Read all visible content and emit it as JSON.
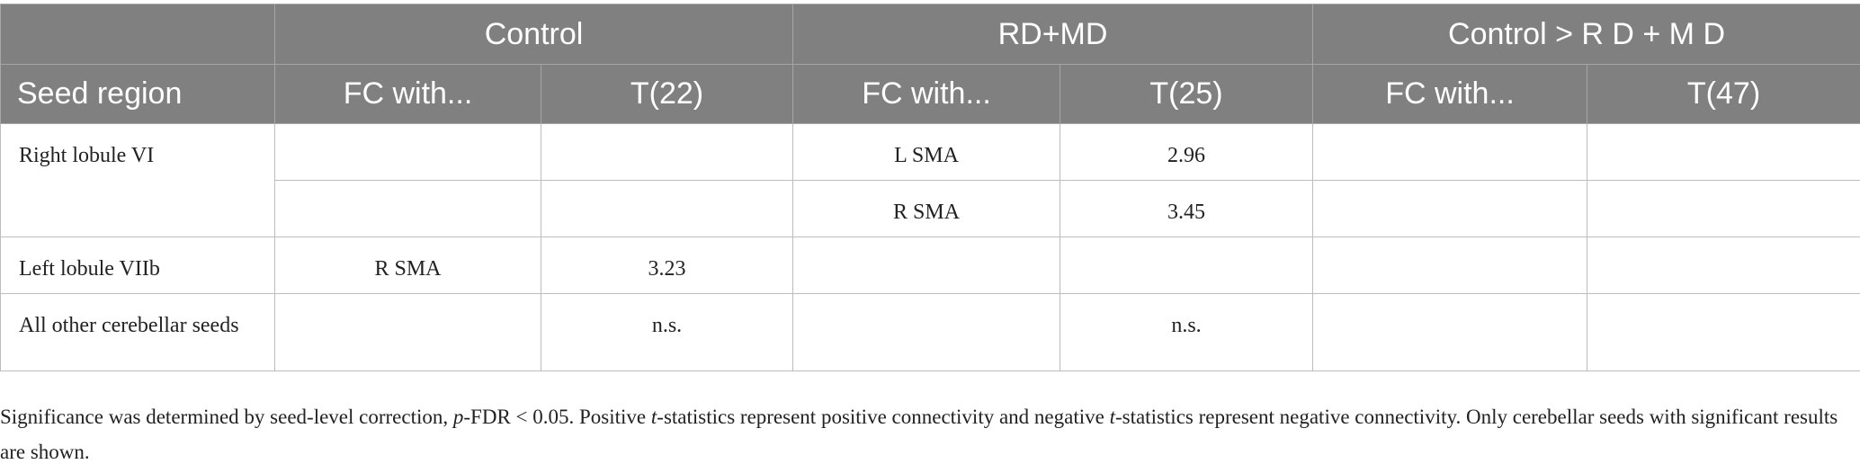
{
  "header": {
    "groups": [
      "Control",
      "RD+MD",
      "Control > R D + M D"
    ],
    "seed_label": "Seed region",
    "sub": [
      "FC with...",
      "T(22)",
      "FC with...",
      "T(25)",
      "FC with...",
      "T(47)"
    ]
  },
  "rows": [
    {
      "seed": "Right lobule VI",
      "cells": [
        "",
        "",
        "L SMA",
        "2.96",
        "",
        ""
      ]
    },
    {
      "cells": [
        "",
        "",
        "R SMA",
        "3.45",
        "",
        ""
      ]
    },
    {
      "seed": "Left lobule VIIb",
      "cells": [
        "R SMA",
        "3.23",
        "",
        "",
        "",
        ""
      ]
    },
    {
      "seed": "All other cerebellar seeds",
      "cells": [
        "",
        "n.s.",
        "",
        "n.s.",
        "",
        ""
      ]
    }
  ],
  "note": {
    "part1": "Significance was determined by seed-level correction, ",
    "p": "p",
    "part2": "-FDR < 0.05. Positive ",
    "t1": "t",
    "part3": "-statistics represent positive connectivity and negative ",
    "t2": "t",
    "part4": "-statistics represent negative connectivity. Only cerebellar seeds with significant results are shown."
  }
}
